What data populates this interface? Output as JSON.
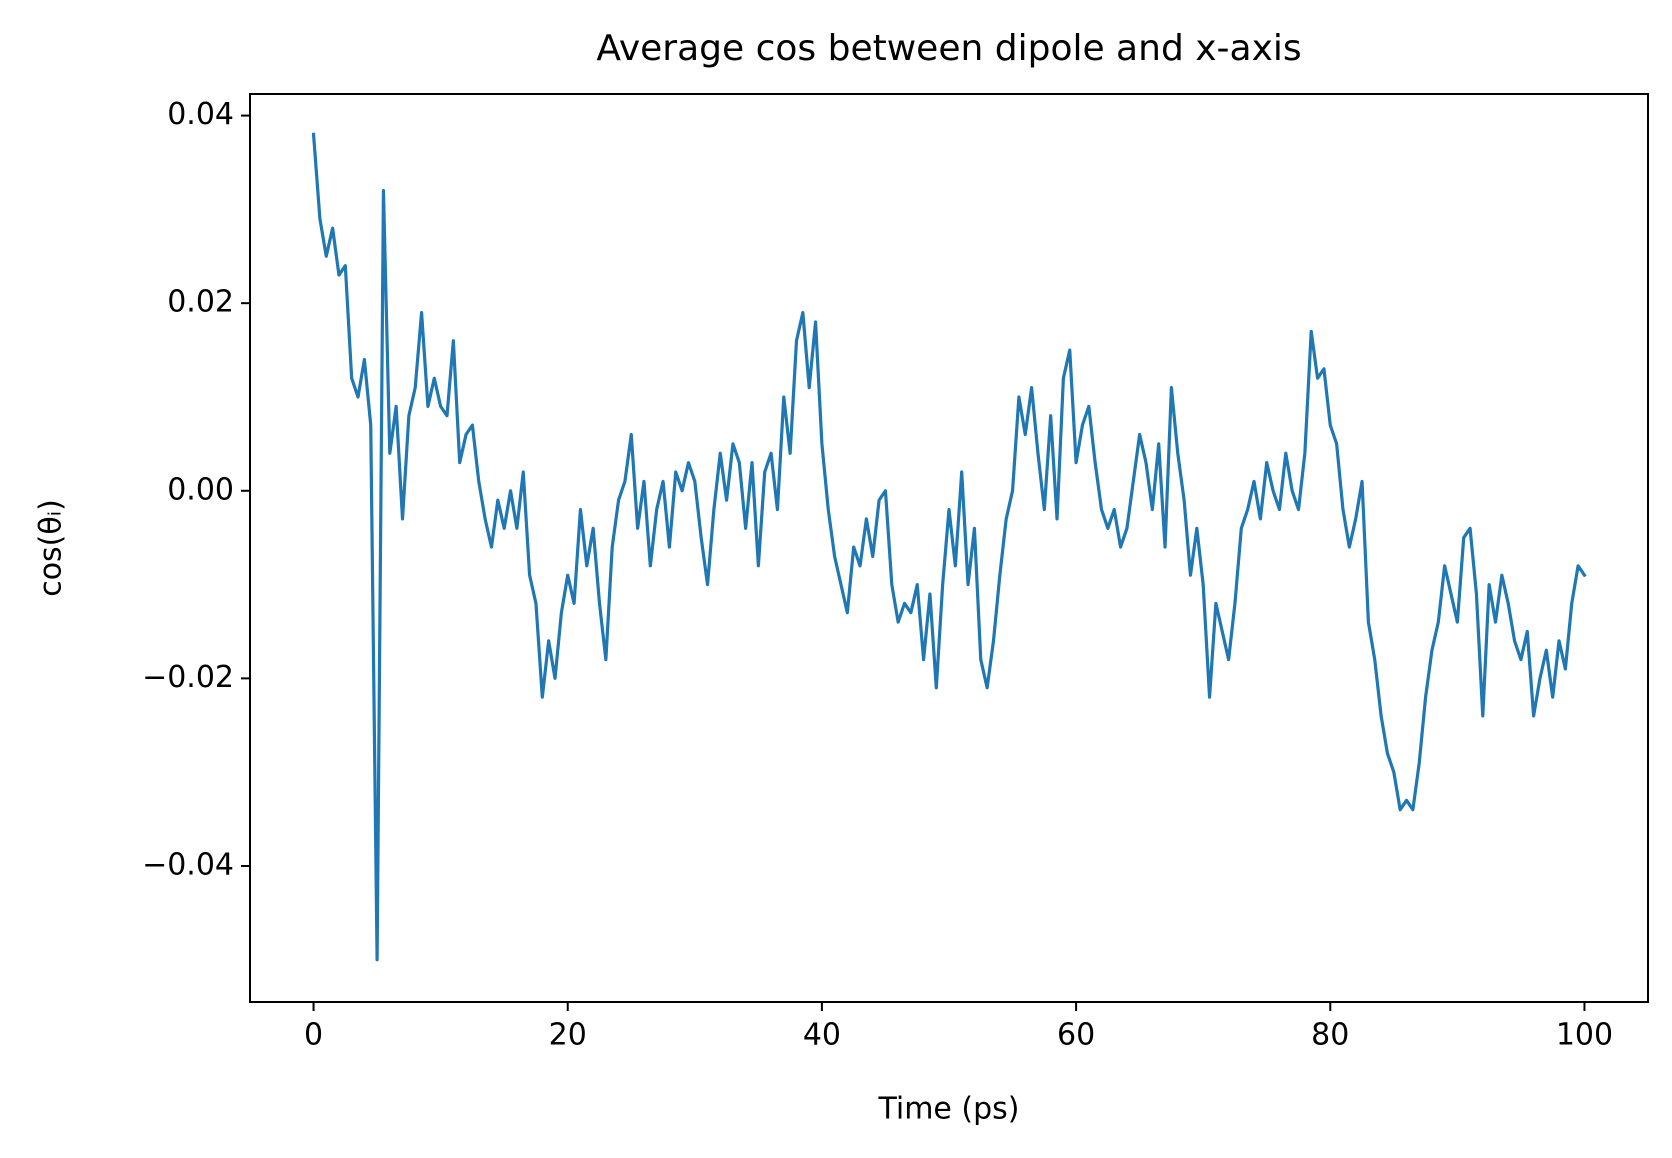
{
  "chart_data": {
    "type": "line",
    "title": "Average cos between dipole and x-axis",
    "xlabel": "Time (ps)",
    "ylabel": "cos(θᵢ)",
    "color": "#1f77b4",
    "x": [
      0,
      0.5,
      1,
      1.5,
      2,
      2.5,
      3,
      3.5,
      4,
      4.5,
      5,
      5.5,
      6,
      6.5,
      7,
      7.5,
      8,
      8.5,
      9,
      9.5,
      10,
      10.5,
      11,
      11.5,
      12,
      12.5,
      13,
      13.5,
      14,
      14.5,
      15,
      15.5,
      16,
      16.5,
      17,
      17.5,
      18,
      18.5,
      19,
      19.5,
      20,
      20.5,
      21,
      21.5,
      22,
      22.5,
      23,
      23.5,
      24,
      24.5,
      25,
      25.5,
      26,
      26.5,
      27,
      27.5,
      28,
      28.5,
      29,
      29.5,
      30,
      30.5,
      31,
      31.5,
      32,
      32.5,
      33,
      33.5,
      34,
      34.5,
      35,
      35.5,
      36,
      36.5,
      37,
      37.5,
      38,
      38.5,
      39,
      39.5,
      40,
      40.5,
      41,
      41.5,
      42,
      42.5,
      43,
      43.5,
      44,
      44.5,
      45,
      45.5,
      46,
      46.5,
      47,
      47.5,
      48,
      48.5,
      49,
      49.5,
      50,
      50.5,
      51,
      51.5,
      52,
      52.5,
      53,
      53.5,
      54,
      54.5,
      55,
      55.5,
      56,
      56.5,
      57,
      57.5,
      58,
      58.5,
      59,
      59.5,
      60,
      60.5,
      61,
      61.5,
      62,
      62.5,
      63,
      63.5,
      64,
      64.5,
      65,
      65.5,
      66,
      66.5,
      67,
      67.5,
      68,
      68.5,
      69,
      69.5,
      70,
      70.5,
      71,
      71.5,
      72,
      72.5,
      73,
      73.5,
      74,
      74.5,
      75,
      75.5,
      76,
      76.5,
      77,
      77.5,
      78,
      78.5,
      79,
      79.5,
      80,
      80.5,
      81,
      81.5,
      82,
      82.5,
      83,
      83.5,
      84,
      84.5,
      85,
      85.5,
      86,
      86.5,
      87,
      87.5,
      88,
      88.5,
      89,
      89.5,
      90,
      90.5,
      91,
      91.5,
      92,
      92.5,
      93,
      93.5,
      94,
      94.5,
      95,
      95.5,
      96,
      96.5,
      97,
      97.5,
      98,
      98.5,
      99,
      99.5,
      100
    ],
    "values": [
      0.038,
      0.029,
      0.025,
      0.028,
      0.023,
      0.024,
      0.012,
      0.01,
      0.014,
      0.007,
      -0.05,
      0.032,
      0.004,
      0.009,
      -0.003,
      0.008,
      0.011,
      0.019,
      0.009,
      0.012,
      0.009,
      0.008,
      0.016,
      0.003,
      0.006,
      0.007,
      0.001,
      -0.003,
      -0.006,
      -0.001,
      -0.004,
      0.0,
      -0.004,
      0.002,
      -0.009,
      -0.012,
      -0.022,
      -0.016,
      -0.02,
      -0.013,
      -0.009,
      -0.012,
      -0.002,
      -0.008,
      -0.004,
      -0.012,
      -0.018,
      -0.006,
      -0.001,
      0.001,
      0.006,
      -0.004,
      0.001,
      -0.008,
      -0.002,
      0.001,
      -0.006,
      0.002,
      0.0,
      0.003,
      0.001,
      -0.005,
      -0.01,
      -0.002,
      0.004,
      -0.001,
      0.005,
      0.003,
      -0.004,
      0.003,
      -0.008,
      0.002,
      0.004,
      -0.002,
      0.01,
      0.004,
      0.016,
      0.019,
      0.011,
      0.018,
      0.005,
      -0.002,
      -0.007,
      -0.01,
      -0.013,
      -0.006,
      -0.008,
      -0.003,
      -0.007,
      -0.001,
      0.0,
      -0.01,
      -0.014,
      -0.012,
      -0.013,
      -0.01,
      -0.018,
      -0.011,
      -0.021,
      -0.01,
      -0.002,
      -0.008,
      0.002,
      -0.01,
      -0.004,
      -0.018,
      -0.021,
      -0.016,
      -0.009,
      -0.003,
      0.0,
      0.01,
      0.006,
      0.011,
      0.004,
      -0.002,
      0.008,
      -0.003,
      0.012,
      0.015,
      0.003,
      0.007,
      0.009,
      0.003,
      -0.002,
      -0.004,
      -0.002,
      -0.006,
      -0.004,
      0.001,
      0.006,
      0.003,
      -0.002,
      0.005,
      -0.006,
      0.011,
      0.004,
      -0.001,
      -0.009,
      -0.004,
      -0.01,
      -0.022,
      -0.012,
      -0.015,
      -0.018,
      -0.012,
      -0.004,
      -0.002,
      0.001,
      -0.003,
      0.003,
      0.0,
      -0.002,
      0.004,
      0.0,
      -0.002,
      0.004,
      0.017,
      0.012,
      0.013,
      0.007,
      0.005,
      -0.002,
      -0.006,
      -0.003,
      0.001,
      -0.014,
      -0.018,
      -0.024,
      -0.028,
      -0.03,
      -0.034,
      -0.033,
      -0.034,
      -0.029,
      -0.022,
      -0.017,
      -0.014,
      -0.008,
      -0.011,
      -0.014,
      -0.005,
      -0.004,
      -0.011,
      -0.024,
      -0.01,
      -0.014,
      -0.009,
      -0.012,
      -0.016,
      -0.018,
      -0.015,
      -0.024,
      -0.02,
      -0.017,
      -0.022,
      -0.016,
      -0.019,
      -0.012,
      -0.008,
      -0.009
    ],
    "xlim": [
      -5,
      105
    ],
    "xticks": [
      0,
      20,
      40,
      60,
      80,
      100
    ],
    "ylim": [
      -0.0545,
      0.0423
    ],
    "yticks": [
      {
        "value": -0.04,
        "label": "−0.04"
      },
      {
        "value": -0.02,
        "label": "−0.02"
      },
      {
        "value": 0,
        "label": "0.00"
      },
      {
        "value": 0.02,
        "label": "0.02"
      },
      {
        "value": 0.04,
        "label": "0.04"
      }
    ],
    "grid": false
  }
}
